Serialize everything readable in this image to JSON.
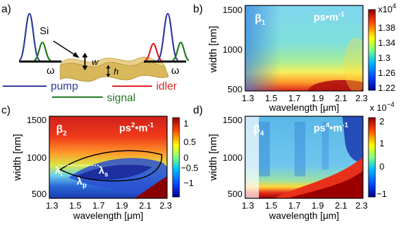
{
  "panel_a": {
    "letter": "a)",
    "material": "Si",
    "sym_w": "w",
    "sym_h": "h",
    "omega_left": "ω",
    "omega_right": "ω",
    "legend": {
      "pump": "pump",
      "signal": "signal",
      "idler": "idler"
    },
    "colors": {
      "pump": "#2e3a9a",
      "signal": "#1f7a1f",
      "idler": "#e02020",
      "waveguide": "#d8b85a"
    }
  },
  "chart_data": [
    {
      "panel": "b)",
      "type": "heatmap",
      "symbol": "β",
      "subscript": "1",
      "unit_main": "ps",
      "unit_dot": "•",
      "unit_m": "m",
      "unit_exp": "-1",
      "xlabel": "wavelength [μm]",
      "ylabel": "width [nm]",
      "x_ticks": [
        "1.3",
        "1.5",
        "1.7",
        "1.9",
        "2.1",
        "2.3"
      ],
      "y_ticks": [
        "500",
        "1000",
        "1500"
      ],
      "xlim": [
        1.3,
        2.3
      ],
      "ylim": [
        400,
        1500
      ],
      "colorbar": {
        "ticks": [
          "1.38",
          "1.34",
          "1.3",
          "1.26",
          "1.22"
        ],
        "multiplier": "x10",
        "multiplier_exp": "4"
      }
    },
    {
      "panel": "c)",
      "type": "heatmap",
      "symbol": "β",
      "subscript": "2",
      "unit_main": "ps",
      "unit_exp2": "2",
      "unit_dot": "•",
      "unit_m": "m",
      "unit_exp": "-1",
      "xlabel": "wavelength [μm]",
      "ylabel": "width [nm]",
      "x_ticks": [
        "1.3",
        "1.5",
        "1.7",
        "1.9",
        "2.1",
        "2.3"
      ],
      "y_ticks": [
        "500",
        "1000",
        "1500"
      ],
      "xlim": [
        1.3,
        2.3
      ],
      "ylim": [
        400,
        1500
      ],
      "colorbar": {
        "ticks": [
          "1",
          "0.5",
          "0",
          "−0.5",
          "−1"
        ]
      },
      "annotations": {
        "lambda_i": "λ",
        "lambda_i_sub": "i",
        "lambda_p": "λ",
        "lambda_p_sub": "p",
        "lambda_s": "λ",
        "lambda_s_sub": "s"
      }
    },
    {
      "panel": "d)",
      "type": "heatmap",
      "symbol": "β",
      "subscript": "4",
      "unit_main": "ps",
      "unit_exp4": "4",
      "unit_dot": "•",
      "unit_m": "m",
      "unit_exp": "-1",
      "xlabel": "wavelength [μm]",
      "ylabel": "width [nm]",
      "x_ticks": [
        "1.3",
        "1.5",
        "1.7",
        "1.9",
        "2.1",
        "2.3"
      ],
      "y_ticks": [
        "500",
        "1000",
        "1500"
      ],
      "xlim": [
        1.3,
        2.3
      ],
      "ylim": [
        400,
        1500
      ],
      "colorbar": {
        "ticks": [
          "2",
          "1",
          "0",
          "−1"
        ],
        "multiplier": "x 10",
        "multiplier_exp": "−4"
      }
    }
  ]
}
